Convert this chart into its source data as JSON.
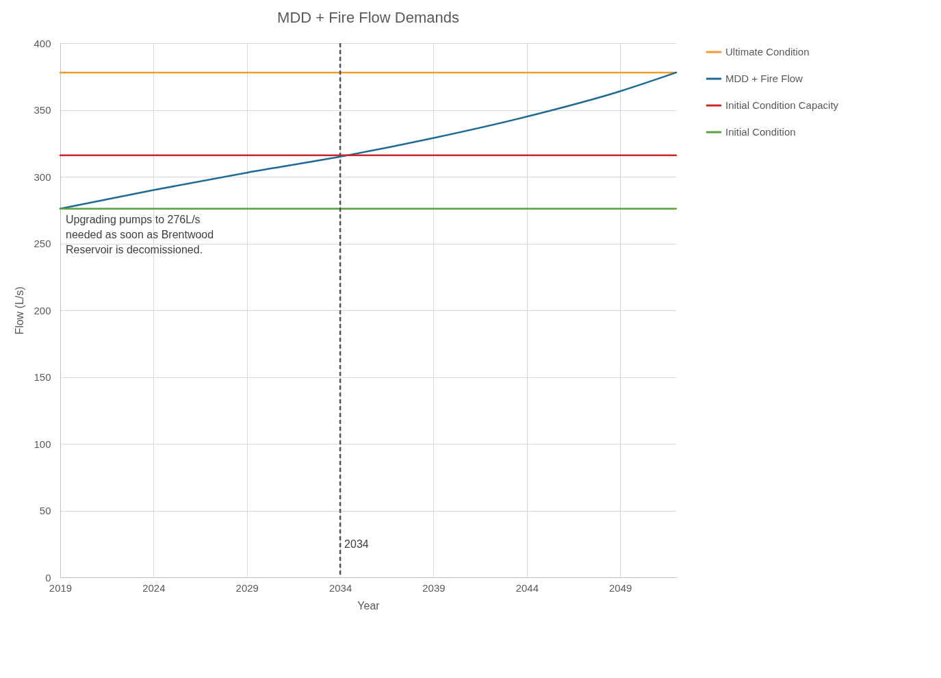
{
  "chart_data": {
    "type": "line",
    "title": "MDD + Fire Flow Demands",
    "xlabel": "Year",
    "ylabel": "Flow (L/s)",
    "xlim": [
      2019,
      2052
    ],
    "xticks": [
      2019,
      2024,
      2029,
      2034,
      2039,
      2044,
      2049
    ],
    "ylim": [
      0,
      400
    ],
    "yticks": [
      0,
      50,
      100,
      150,
      200,
      250,
      300,
      350,
      400
    ],
    "grid": true,
    "legend": "right",
    "marker": "none",
    "line_style": "solid",
    "series": [
      {
        "name": "Ultimate Condition",
        "color": "#f29a2e",
        "x": [
          2019,
          2052
        ],
        "values": [
          378,
          378
        ]
      },
      {
        "name": "MDD + Fire Flow",
        "color": "#1f6a94",
        "x": [
          2019,
          2024,
          2029,
          2034,
          2039,
          2044,
          2049,
          2052
        ],
        "values": [
          276,
          290,
          303,
          315,
          329,
          345,
          364,
          378
        ]
      },
      {
        "name": "Initial Condition Capacity",
        "color": "#d0242a",
        "x": [
          2019,
          2052
        ],
        "values": [
          316,
          316
        ]
      },
      {
        "name": "Initial Condition",
        "color": "#5ba33b",
        "x": [
          2019,
          2052
        ],
        "values": [
          276,
          276
        ]
      }
    ],
    "ref_lines": [
      {
        "axis": "x",
        "value": 2034,
        "label": "2034",
        "color": "#505050",
        "line_style": "dashed"
      }
    ],
    "annotations": [
      {
        "text": "Upgrading pumps to 276L/s needed as soon as Brentwood Reservoir is decomissioned.",
        "x": 2019,
        "y": 276
      }
    ]
  }
}
